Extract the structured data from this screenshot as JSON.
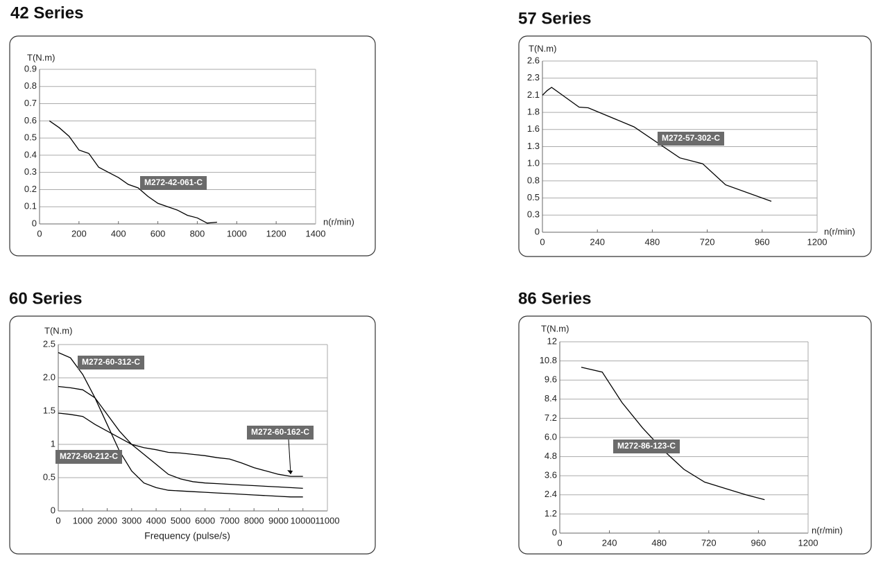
{
  "chart_data": [
    {
      "type": "line",
      "title": "42 Series",
      "ylabel": "T(N.m)",
      "xlabel": "n(r/min)",
      "x": [
        50,
        100,
        150,
        200,
        250,
        300,
        350,
        400,
        450,
        500,
        550,
        600,
        650,
        700,
        750,
        800,
        850,
        900
      ],
      "series": [
        {
          "name": "M272-42-061-C",
          "color": "#000000",
          "values": [
            0.6,
            0.56,
            0.51,
            0.43,
            0.41,
            0.33,
            0.3,
            0.27,
            0.23,
            0.21,
            0.16,
            0.12,
            0.1,
            0.08,
            0.05,
            0.035,
            0.005,
            0.01
          ]
        }
      ],
      "xlim": [
        0,
        1400
      ],
      "ylim": [
        0,
        0.9
      ],
      "xticks": [
        0,
        200,
        400,
        600,
        800,
        1000,
        1200,
        1400
      ],
      "yticks": [
        0,
        0.1,
        0.2,
        0.3,
        0.4,
        0.5,
        0.6,
        0.7,
        0.8,
        0.9
      ],
      "grid": true
    },
    {
      "type": "line",
      "title": "57 Series",
      "ylabel": "T(N.m)",
      "xlabel": "n(r/min)",
      "x": [
        0,
        20,
        40,
        80,
        160,
        200,
        400,
        600,
        700,
        800,
        1000
      ],
      "series": [
        {
          "name": "M272-57-302-C",
          "color": "#000000",
          "values": [
            2.08,
            2.15,
            2.2,
            2.1,
            1.9,
            1.89,
            1.6,
            1.13,
            1.04,
            0.72,
            0.47
          ]
        }
      ],
      "xlim": [
        0,
        1200
      ],
      "ylim": [
        0,
        2.6
      ],
      "xticks": [
        0,
        240,
        480,
        720,
        960,
        1200
      ],
      "yticks": [
        0,
        {
          "value": 0.26,
          "label": "0.3"
        },
        {
          "value": 0.52,
          "label": "0.5"
        },
        {
          "value": 0.78,
          "label": "0.8"
        },
        {
          "value": 1.04,
          "label": "1.0"
        },
        1.3,
        {
          "value": 1.56,
          "label": "1.6"
        },
        {
          "value": 1.82,
          "label": "1.8"
        },
        {
          "value": 2.08,
          "label": "2.1"
        },
        {
          "value": 2.34,
          "label": "2.3"
        },
        2.6
      ],
      "grid": true
    },
    {
      "type": "line",
      "title": "60 Series",
      "ylabel": "T(N.m)",
      "xlabel": "Frequency (pulse/s)",
      "x": [
        0,
        500,
        1000,
        1500,
        2000,
        2500,
        3000,
        3500,
        4000,
        4500,
        5000,
        5500,
        6000,
        6500,
        7000,
        7500,
        8000,
        8500,
        9000,
        9500,
        10000
      ],
      "series": [
        {
          "name": "M272-60-312-C",
          "color": "#000000",
          "values": [
            2.38,
            2.3,
            2.05,
            1.7,
            1.3,
            0.9,
            0.6,
            0.42,
            0.35,
            0.31,
            0.3,
            0.29,
            0.28,
            0.27,
            0.26,
            0.25,
            0.24,
            0.23,
            0.22,
            0.21,
            0.21
          ]
        },
        {
          "name": "M272-60-212-C",
          "color": "#000000",
          "values": [
            1.87,
            1.85,
            1.82,
            1.7,
            1.45,
            1.2,
            1.0,
            0.85,
            0.7,
            0.55,
            0.48,
            0.44,
            0.42,
            0.41,
            0.4,
            0.39,
            0.38,
            0.37,
            0.36,
            0.35,
            0.34
          ]
        },
        {
          "name": "M272-60-162-C",
          "color": "#000000",
          "values": [
            1.47,
            1.45,
            1.42,
            1.3,
            1.2,
            1.1,
            1.0,
            0.95,
            0.92,
            0.88,
            0.87,
            0.85,
            0.83,
            0.8,
            0.78,
            0.72,
            0.65,
            0.6,
            0.55,
            0.52,
            0.52
          ]
        }
      ],
      "xlim": [
        0,
        11000
      ],
      "ylim": [
        0,
        2.5
      ],
      "xticks": [
        0,
        1000,
        2000,
        3000,
        4000,
        5000,
        6000,
        7000,
        8000,
        9000,
        10000,
        11000
      ],
      "yticks": [
        0,
        0.5,
        1,
        1.5,
        {
          "value": 2,
          "label": "2.0"
        },
        2.5
      ],
      "grid": true
    },
    {
      "type": "line",
      "title": "86 Series",
      "ylabel": "T(N.m)",
      "xlabel": "n(r/min)",
      "x": [
        104,
        205,
        300,
        400,
        500,
        600,
        700,
        800,
        900,
        990
      ],
      "series": [
        {
          "name": "M272-86-123-C",
          "color": "#000000",
          "values": [
            10.4,
            10.1,
            8.2,
            6.6,
            5.2,
            4.0,
            3.2,
            2.8,
            2.4,
            2.1
          ]
        }
      ],
      "xlim": [
        0,
        1200
      ],
      "ylim": [
        0,
        12
      ],
      "xticks": [
        0,
        240,
        480,
        720,
        960,
        1200
      ],
      "yticks": [
        0,
        1.2,
        2.4,
        3.6,
        4.8,
        {
          "value": 6,
          "label": "6.0"
        },
        7.2,
        8.4,
        9.6,
        10.8,
        12
      ],
      "grid": true
    }
  ]
}
